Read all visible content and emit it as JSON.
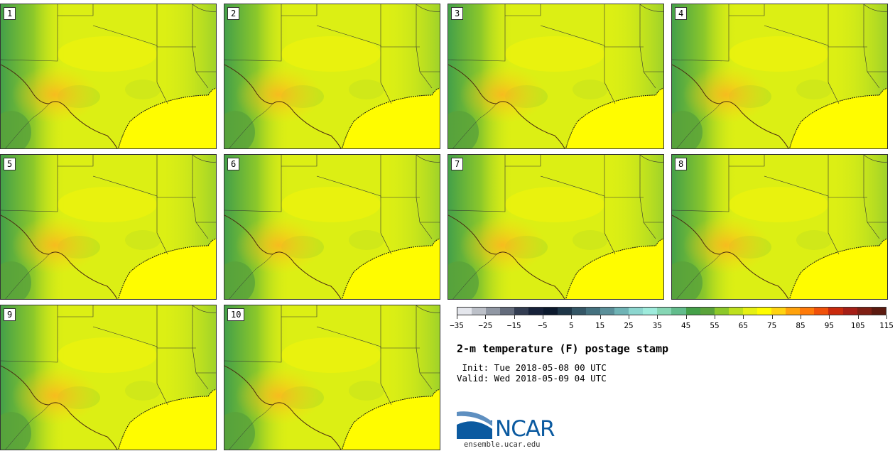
{
  "panels": [
    "1",
    "2",
    "3",
    "4",
    "5",
    "6",
    "7",
    "8",
    "9",
    "10"
  ],
  "colorbar": {
    "colors": [
      "#e4e6ec",
      "#bcc0c8",
      "#9097a3",
      "#636b7b",
      "#333d52",
      "#17223a",
      "#0c1a2e",
      "#1e3648",
      "#345666",
      "#44717f",
      "#5a8f99",
      "#6fb3b5",
      "#8cd6cf",
      "#9eebdc",
      "#86d6b4",
      "#62bc8c",
      "#44a049",
      "#5aa33a",
      "#8cc82a",
      "#bee01d",
      "#e6f013",
      "#fffc00",
      "#ffd311",
      "#ffa20c",
      "#ff7a09",
      "#f0510a",
      "#c92a0d",
      "#a51f17",
      "#7f1f14",
      "#5b1a10"
    ],
    "tick_labels": [
      "−35",
      "−25",
      "−15",
      "−5",
      "5",
      "15",
      "25",
      "35",
      "45",
      "55",
      "65",
      "75",
      "85",
      "95",
      "105",
      "115"
    ]
  },
  "title": "2-m temperature (F) postage stamp",
  "init_line": " Init: Tue 2018-05-08 00 UTC",
  "valid_line": "Valid: Wed 2018-05-09 04 UTC",
  "logo": {
    "text": "NCAR",
    "url": "ensemble.ucar.edu"
  }
}
